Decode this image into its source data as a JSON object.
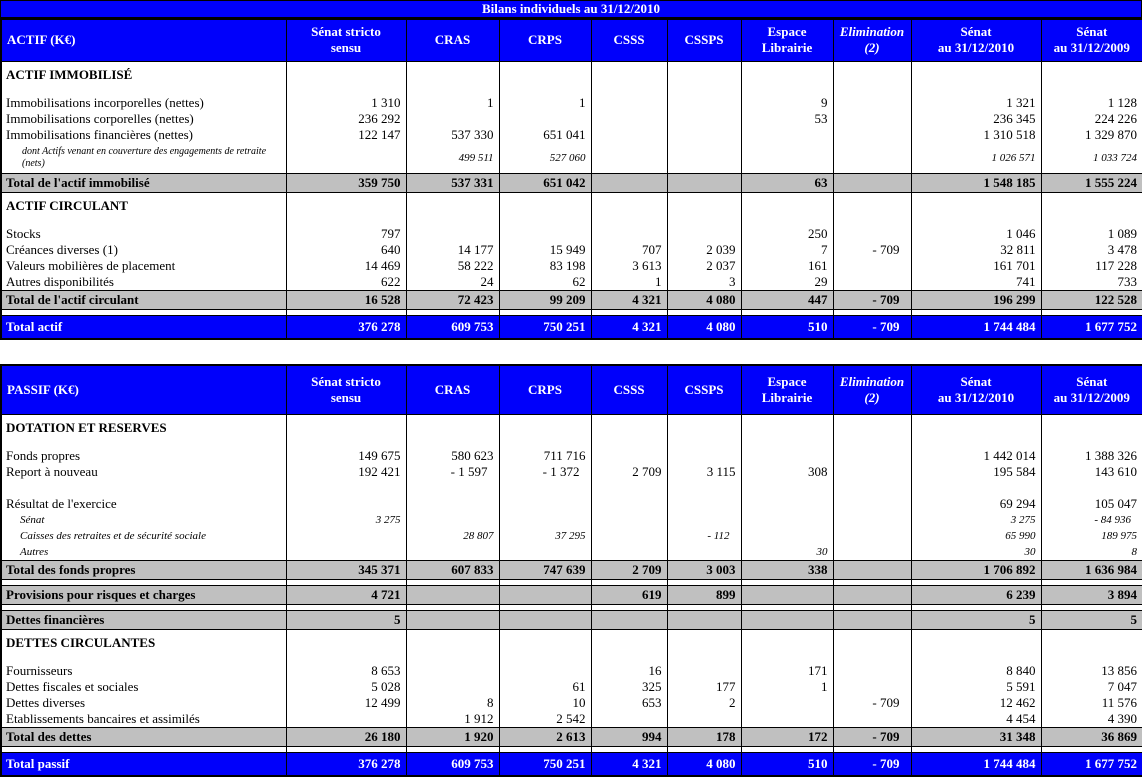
{
  "title": "Bilans individuels au 31/12/2010",
  "colors": {
    "header_blue": "#0000FB",
    "total_gray": "#C0C0C0",
    "border_black": "#000000",
    "header_text_white": "#FFFFFF"
  },
  "columns": [
    {
      "label": "Sénat stricto\nsensu"
    },
    {
      "label": "CRAS"
    },
    {
      "label": "CRPS"
    },
    {
      "label": "CSSS"
    },
    {
      "label": "CSSPS"
    },
    {
      "label": "Espace\nLibrairie"
    },
    {
      "label": "Elimination\n(2)",
      "italic": true
    },
    {
      "label": "Sénat\nau 31/12/2010"
    },
    {
      "label": "Sénat\nau 31/12/2009"
    }
  ],
  "sections": [
    {
      "id": "actif",
      "header_label": "ACTIF (K€)",
      "rows": [
        {
          "type": "section",
          "label": "ACTIF IMMOBILISÉ"
        },
        {
          "type": "spacer"
        },
        {
          "type": "row",
          "label": "Immobilisations incorporelles (nettes)",
          "values": [
            "1 310",
            "1",
            "1",
            "",
            "",
            "9",
            "",
            "1 321",
            "1 128"
          ]
        },
        {
          "type": "row",
          "label": "Immobilisations corporelles (nettes)",
          "values": [
            "236 292",
            "",
            "",
            "",
            "",
            "53",
            "",
            "236 345",
            "224 226"
          ]
        },
        {
          "type": "row",
          "label": "Immobilisations financières (nettes)",
          "values": [
            "122 147",
            "537 330",
            "651 041",
            "",
            "",
            "",
            "",
            "1 310 518",
            "1 329 870"
          ]
        },
        {
          "type": "subnote",
          "label": "dont Actifs venant en couverture des engagements de retraite (nets)",
          "values": [
            "",
            "499 511",
            "527 060",
            "",
            "",
            "",
            "",
            "1 026 571",
            "1 033 724"
          ]
        },
        {
          "type": "total",
          "label": "Total de l'actif immobilisé",
          "values": [
            "359 750",
            "537 331",
            "651 042",
            "",
            "",
            "63",
            "",
            "1 548 185",
            "1 555 224"
          ]
        },
        {
          "type": "section",
          "label": "ACTIF CIRCULANT"
        },
        {
          "type": "spacer"
        },
        {
          "type": "row",
          "label": "Stocks",
          "values": [
            "797",
            "",
            "",
            "",
            "",
            "250",
            "",
            "1 046",
            "1 089"
          ]
        },
        {
          "type": "row",
          "label": "Créances diverses (1)",
          "values": [
            "640",
            "14 177",
            "15 949",
            "707",
            "2 039",
            "7",
            "- 709",
            "32 811",
            "3 478"
          ]
        },
        {
          "type": "row",
          "label": "Valeurs mobilières de placement",
          "values": [
            "14 469",
            "58 222",
            "83 198",
            "3 613",
            "2 037",
            "161",
            "",
            "161 701",
            "117 228"
          ]
        },
        {
          "type": "row",
          "label": "Autres disponibilités",
          "values": [
            "622",
            "24",
            "62",
            "1",
            "3",
            "29",
            "",
            "741",
            "733"
          ]
        },
        {
          "type": "total",
          "label": "Total de l'actif circulant",
          "values": [
            "16 528",
            "72 423",
            "99 209",
            "4 321",
            "4 080",
            "447",
            "- 709",
            "196 299",
            "122 528"
          ]
        },
        {
          "type": "spacer-s"
        },
        {
          "type": "grand",
          "label": "Total actif",
          "values": [
            "376 278",
            "609 753",
            "750 251",
            "4 321",
            "4 080",
            "510",
            "- 709",
            "1 744 484",
            "1 677 752"
          ]
        }
      ]
    },
    {
      "id": "passif",
      "header_label": "PASSIF (K€)",
      "rows": [
        {
          "type": "section",
          "label": "DOTATION ET RESERVES"
        },
        {
          "type": "spacer"
        },
        {
          "type": "row",
          "label": "Fonds propres",
          "values": [
            "149 675",
            "580 623",
            "711 716",
            "",
            "",
            "",
            "",
            "1 442 014",
            "1 388 326"
          ]
        },
        {
          "type": "row",
          "label": "Report à nouveau",
          "values": [
            "192 421",
            "- 1 597",
            "- 1 372",
            "2 709",
            "3 115",
            "308",
            "",
            "195 584",
            "143 610"
          ]
        },
        {
          "type": "blank"
        },
        {
          "type": "row",
          "label": "Résultat de l'exercice",
          "values": [
            "",
            "",
            "",
            "",
            "",
            "",
            "",
            "69 294",
            "105 047"
          ]
        },
        {
          "type": "italic",
          "label": "Sénat",
          "values": [
            "3 275",
            "",
            "",
            "",
            "",
            "",
            "",
            "3 275",
            "- 84 936"
          ]
        },
        {
          "type": "italic",
          "label": "Caisses des retraites et de sécurité sociale",
          "values": [
            "",
            "28 807",
            "37 295",
            "",
            "- 112",
            "",
            "",
            "65 990",
            "189 975"
          ]
        },
        {
          "type": "italic",
          "label": "Autres",
          "values": [
            "",
            "",
            "",
            "",
            "",
            "30",
            "",
            "30",
            "8"
          ]
        },
        {
          "type": "total",
          "label": "Total des fonds propres",
          "values": [
            "345 371",
            "607 833",
            "747 639",
            "2 709",
            "3 003",
            "338",
            "",
            "1 706 892",
            "1 636 984"
          ]
        },
        {
          "type": "spacer-s"
        },
        {
          "type": "total",
          "label": "Provisions pour risques et charges",
          "values": [
            "4 721",
            "",
            "",
            "619",
            "899",
            "",
            "",
            "6 239",
            "3 894"
          ]
        },
        {
          "type": "spacer-s"
        },
        {
          "type": "total",
          "label": "Dettes financières",
          "values": [
            "5",
            "",
            "",
            "",
            "",
            "",
            "",
            "5",
            "5"
          ]
        },
        {
          "type": "section",
          "label": "DETTES CIRCULANTES"
        },
        {
          "type": "spacer"
        },
        {
          "type": "row",
          "label": "Fournisseurs",
          "values": [
            "8 653",
            "",
            "",
            "16",
            "",
            "171",
            "",
            "8 840",
            "13 856"
          ]
        },
        {
          "type": "row",
          "label": "Dettes fiscales et sociales",
          "values": [
            "5 028",
            "",
            "61",
            "325",
            "177",
            "1",
            "",
            "5 591",
            "7 047"
          ]
        },
        {
          "type": "row",
          "label": "Dettes diverses",
          "values": [
            "12 499",
            "8",
            "10",
            "653",
            "2",
            "",
            "- 709",
            "12 462",
            "11 576"
          ]
        },
        {
          "type": "row",
          "label": "Etablissements bancaires et assimilés",
          "values": [
            "",
            "1 912",
            "2 542",
            "",
            "",
            "",
            "",
            "4 454",
            "4 390"
          ]
        },
        {
          "type": "total",
          "label": "Total des dettes",
          "values": [
            "26 180",
            "1 920",
            "2 613",
            "994",
            "178",
            "172",
            "- 709",
            "31 348",
            "36 869"
          ]
        },
        {
          "type": "spacer-s"
        },
        {
          "type": "grand",
          "label": "Total passif",
          "values": [
            "376 278",
            "609 753",
            "750 251",
            "4 321",
            "4 080",
            "510",
            "- 709",
            "1 744 484",
            "1 677 752"
          ]
        }
      ]
    }
  ]
}
